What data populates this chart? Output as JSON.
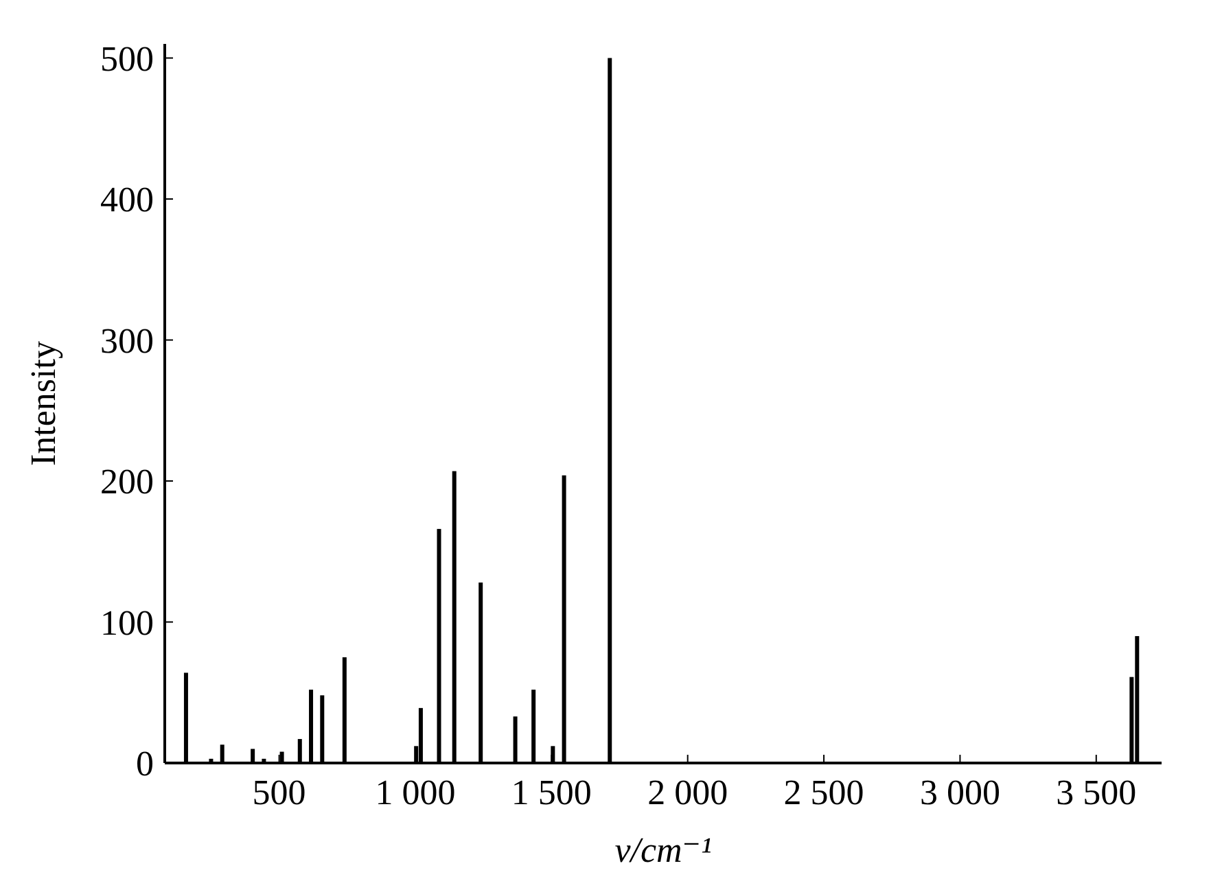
{
  "chart_data": {
    "type": "bar",
    "xlabel": "ν/cm⁻¹",
    "ylabel": "Intensity",
    "x": [
      158,
      250,
      291,
      403,
      444,
      510,
      576,
      617,
      658,
      740,
      1003,
      1020,
      1087,
      1143,
      1240,
      1367,
      1434,
      1505,
      1546,
      1714,
      3630,
      3650
    ],
    "values": [
      64,
      3,
      13,
      10,
      3,
      8,
      17,
      52,
      48,
      75,
      12,
      39,
      166,
      207,
      128,
      33,
      52,
      12,
      204,
      500,
      61,
      90
    ],
    "color": "#000000",
    "xlim": [
      80,
      3740
    ],
    "xticks": [
      500,
      {
        "value": 1000,
        "label": "1 000"
      },
      {
        "value": 1500,
        "label": "1 500"
      },
      {
        "value": 2000,
        "label": "2 000"
      },
      {
        "value": 2500,
        "label": "2 500"
      },
      {
        "value": 3000,
        "label": "3 000"
      },
      {
        "value": 3500,
        "label": "3 500"
      }
    ],
    "ylim": [
      0,
      510
    ],
    "yticks": [
      0,
      100,
      200,
      300,
      400,
      500
    ],
    "grid": false
  }
}
